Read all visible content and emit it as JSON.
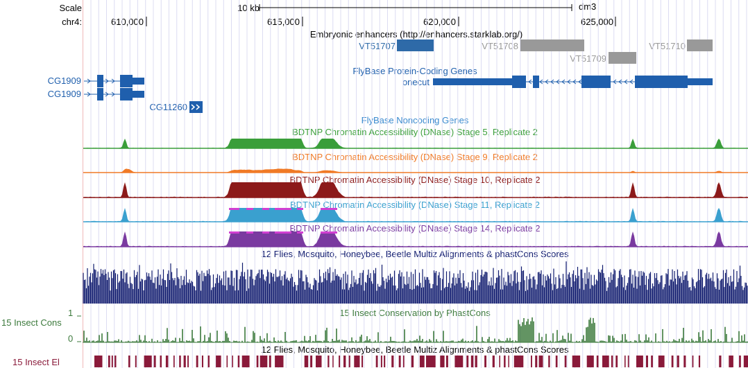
{
  "ruler": {
    "scale_label": "Scale",
    "chrom_label": "chr4:",
    "scalebar_label": "10 kb",
    "assembly": "dm3",
    "ticks": [
      "610,000",
      "615,000",
      "620,000",
      "625,000"
    ]
  },
  "tracks": {
    "enhancers": {
      "title": "Embryonic enhancers (http://enhancers.starklab.org/)",
      "items": [
        "VT51707",
        "VT51708",
        "VT51709",
        "VT51710"
      ]
    },
    "genes": {
      "left": [
        "CG1909",
        "CG1909",
        "CG11260"
      ],
      "title": "FlyBase Protein-Coding Genes",
      "onecut": "onecut",
      "noncoding_title": "FlyBase Noncoding Genes"
    },
    "dnase": [
      {
        "title": "BDTNP Chromatin Accessibility (DNase) Stage 5, Replicate 2",
        "color": "#3a9e3a"
      },
      {
        "title": "BDTNP Chromatin Accessibility (DNase) Stage 9, Replicate 2",
        "color": "#f07a26"
      },
      {
        "title": "BDTNP Chromatin Accessibility (DNase) Stage 10, Replicate 2",
        "color": "#8c1a1a"
      },
      {
        "title": "BDTNP Chromatin Accessibility (DNase) Stage 11, Replicate 2",
        "color": "#3aa0cf"
      },
      {
        "title": "BDTNP Chromatin Accessibility (DNase) Stage 14, Replicate 2",
        "color": "#7a3aa0"
      }
    ],
    "multiz": {
      "title": "12 Flies, Mosquito, Honeybee, Beetle Multiz Alignments & phastCons Scores"
    },
    "cons": {
      "side_label": "15 Insect Cons",
      "title": "15 Insect Conservation by PhastCons",
      "max": "1",
      "min": "0"
    },
    "elements": {
      "side_label": "15 Insect El",
      "title": "12 Flies, Mosquito, Honeybee, Beetle Multiz Alignments & phastCons Scores"
    }
  },
  "colors": {
    "gene_blue": "#1f5fad",
    "enh_blue": "#2e6aa8",
    "enh_gray": "#999999",
    "multiz": "#0f1a6e",
    "cons_green": "#3c7a3c",
    "element_red": "#8a1a3a"
  }
}
